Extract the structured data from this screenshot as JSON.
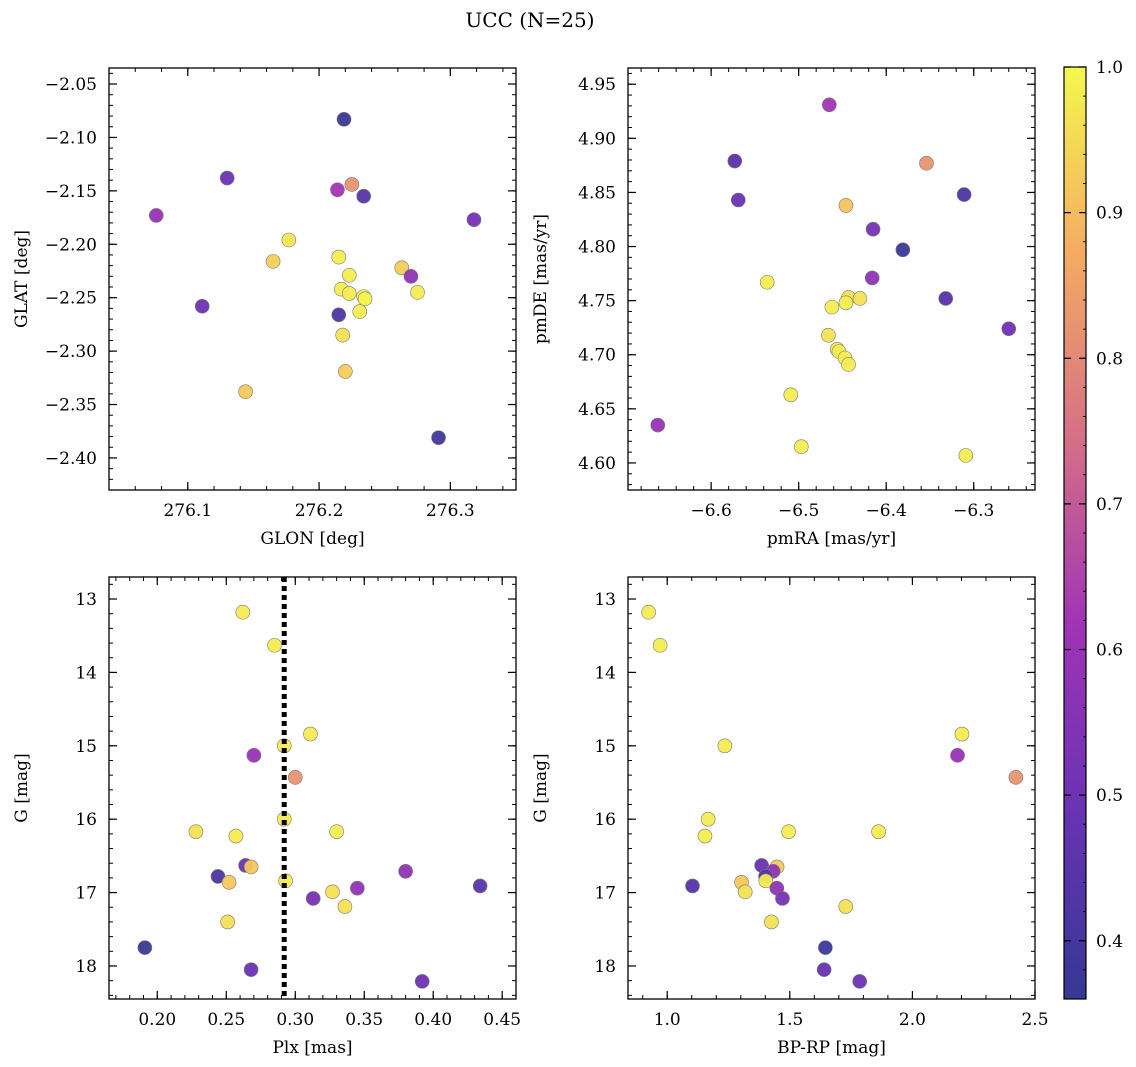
{
  "figure": {
    "title": "UCC (N=25)"
  },
  "colorbar": {
    "range": [
      0.36,
      1.0
    ],
    "ticks": [
      0.4,
      0.5,
      0.6,
      0.7,
      0.8,
      0.9,
      1.0
    ],
    "tick_labels": [
      "0.4",
      "0.5",
      "0.6",
      "0.7",
      "0.8",
      "0.9",
      "1.0"
    ],
    "colormap": "plasma"
  },
  "chart_data": [
    {
      "type": "scatter",
      "xlabel": "GLON [deg]",
      "ylabel": "GLAT [deg]",
      "xlim": [
        276.04,
        276.35
      ],
      "ylim": [
        -2.43,
        -2.035
      ],
      "xticks": [
        276.1,
        276.2,
        276.3
      ],
      "xtick_labels": [
        "276.1",
        "276.2",
        "276.3"
      ],
      "yticks": [
        -2.4,
        -2.35,
        -2.3,
        -2.25,
        -2.2,
        -2.15,
        -2.1,
        -2.05
      ],
      "ytick_labels": [
        "−2.40",
        "−2.35",
        "−2.30",
        "−2.25",
        "−2.20",
        "−2.15",
        "−2.10",
        "−2.05"
      ],
      "y_inverted": false,
      "points": [
        {
          "x": 276.219,
          "y": -2.083,
          "c": 0.37
        },
        {
          "x": 276.13,
          "y": -2.138,
          "c": 0.49
        },
        {
          "x": 276.214,
          "y": -2.149,
          "c": 0.62
        },
        {
          "x": 276.225,
          "y": -2.144,
          "c": 0.82
        },
        {
          "x": 276.234,
          "y": -2.155,
          "c": 0.45
        },
        {
          "x": 276.076,
          "y": -2.173,
          "c": 0.6
        },
        {
          "x": 276.318,
          "y": -2.177,
          "c": 0.52
        },
        {
          "x": 276.177,
          "y": -2.196,
          "c": 0.97
        },
        {
          "x": 276.215,
          "y": -2.212,
          "c": 0.98
        },
        {
          "x": 276.165,
          "y": -2.216,
          "c": 0.93
        },
        {
          "x": 276.263,
          "y": -2.222,
          "c": 0.93
        },
        {
          "x": 276.223,
          "y": -2.229,
          "c": 0.98
        },
        {
          "x": 276.27,
          "y": -2.23,
          "c": 0.58
        },
        {
          "x": 276.217,
          "y": -2.242,
          "c": 0.98
        },
        {
          "x": 276.223,
          "y": -2.246,
          "c": 0.98
        },
        {
          "x": 276.275,
          "y": -2.245,
          "c": 0.98
        },
        {
          "x": 276.234,
          "y": -2.249,
          "c": 0.99
        },
        {
          "x": 276.235,
          "y": -2.251,
          "c": 0.99
        },
        {
          "x": 276.111,
          "y": -2.258,
          "c": 0.5
        },
        {
          "x": 276.231,
          "y": -2.263,
          "c": 0.98
        },
        {
          "x": 276.215,
          "y": -2.266,
          "c": 0.42
        },
        {
          "x": 276.218,
          "y": -2.285,
          "c": 0.96
        },
        {
          "x": 276.22,
          "y": -2.319,
          "c": 0.93
        },
        {
          "x": 276.144,
          "y": -2.338,
          "c": 0.92
        },
        {
          "x": 276.291,
          "y": -2.381,
          "c": 0.39
        }
      ]
    },
    {
      "type": "scatter",
      "xlabel": "pmRA [mas/yr]",
      "ylabel": "pmDE [mas/yr]",
      "xlim": [
        -6.695,
        -6.23
      ],
      "ylim": [
        4.575,
        4.965
      ],
      "xticks": [
        -6.6,
        -6.5,
        -6.4,
        -6.3
      ],
      "xtick_labels": [
        "−6.6",
        "−6.5",
        "−6.4",
        "−6.3"
      ],
      "yticks": [
        4.6,
        4.65,
        4.7,
        4.75,
        4.8,
        4.85,
        4.9,
        4.95
      ],
      "ytick_labels": [
        "4.60",
        "4.65",
        "4.70",
        "4.75",
        "4.80",
        "4.85",
        "4.90",
        "4.95"
      ],
      "y_inverted": false,
      "points": [
        {
          "x": -6.465,
          "y": 4.931,
          "c": 0.62
        },
        {
          "x": -6.573,
          "y": 4.879,
          "c": 0.45
        },
        {
          "x": -6.354,
          "y": 4.877,
          "c": 0.82
        },
        {
          "x": -6.569,
          "y": 4.843,
          "c": 0.49
        },
        {
          "x": -6.311,
          "y": 4.848,
          "c": 0.42
        },
        {
          "x": -6.446,
          "y": 4.838,
          "c": 0.91
        },
        {
          "x": -6.415,
          "y": 4.816,
          "c": 0.52
        },
        {
          "x": -6.381,
          "y": 4.797,
          "c": 0.37
        },
        {
          "x": -6.416,
          "y": 4.771,
          "c": 0.58
        },
        {
          "x": -6.536,
          "y": 4.767,
          "c": 0.98
        },
        {
          "x": -6.332,
          "y": 4.752,
          "c": 0.45
        },
        {
          "x": -6.443,
          "y": 4.753,
          "c": 0.96
        },
        {
          "x": -6.43,
          "y": 4.752,
          "c": 0.96
        },
        {
          "x": -6.446,
          "y": 4.748,
          "c": 0.98
        },
        {
          "x": -6.462,
          "y": 4.744,
          "c": 0.98
        },
        {
          "x": -6.26,
          "y": 4.724,
          "c": 0.5
        },
        {
          "x": -6.466,
          "y": 4.718,
          "c": 0.96
        },
        {
          "x": -6.456,
          "y": 4.705,
          "c": 0.98
        },
        {
          "x": -6.454,
          "y": 4.703,
          "c": 0.98
        },
        {
          "x": -6.447,
          "y": 4.697,
          "c": 0.98
        },
        {
          "x": -6.443,
          "y": 4.691,
          "c": 0.98
        },
        {
          "x": -6.509,
          "y": 4.663,
          "c": 0.98
        },
        {
          "x": -6.661,
          "y": 4.635,
          "c": 0.6
        },
        {
          "x": -6.497,
          "y": 4.615,
          "c": 0.98
        },
        {
          "x": -6.309,
          "y": 4.607,
          "c": 0.98
        }
      ]
    },
    {
      "type": "scatter",
      "xlabel": "Plx [mas]",
      "ylabel": "G [mag]",
      "xlim": [
        0.165,
        0.46
      ],
      "ylim": [
        18.45,
        12.7
      ],
      "xticks": [
        0.2,
        0.25,
        0.3,
        0.35,
        0.4,
        0.45
      ],
      "xtick_labels": [
        "0.20",
        "0.25",
        "0.30",
        "0.35",
        "0.40",
        "0.45"
      ],
      "yticks": [
        13,
        14,
        15,
        16,
        17,
        18
      ],
      "ytick_labels": [
        "13",
        "14",
        "15",
        "16",
        "17",
        "18"
      ],
      "y_inverted": true,
      "vline": {
        "x": 0.292,
        "style": "dotted"
      },
      "points": [
        {
          "x": 0.262,
          "y": 13.18,
          "c": 0.98
        },
        {
          "x": 0.285,
          "y": 13.63,
          "c": 0.98
        },
        {
          "x": 0.292,
          "y": 15.0,
          "c": 0.98
        },
        {
          "x": 0.311,
          "y": 14.84,
          "c": 0.98
        },
        {
          "x": 0.27,
          "y": 15.13,
          "c": 0.6
        },
        {
          "x": 0.3,
          "y": 15.43,
          "c": 0.82
        },
        {
          "x": 0.292,
          "y": 16.0,
          "c": 0.98
        },
        {
          "x": 0.228,
          "y": 16.17,
          "c": 0.96
        },
        {
          "x": 0.257,
          "y": 16.23,
          "c": 0.98
        },
        {
          "x": 0.33,
          "y": 16.17,
          "c": 0.98
        },
        {
          "x": 0.264,
          "y": 16.63,
          "c": 0.49
        },
        {
          "x": 0.268,
          "y": 16.65,
          "c": 0.92
        },
        {
          "x": 0.38,
          "y": 16.71,
          "c": 0.58
        },
        {
          "x": 0.244,
          "y": 16.78,
          "c": 0.42
        },
        {
          "x": 0.252,
          "y": 16.86,
          "c": 0.92
        },
        {
          "x": 0.293,
          "y": 16.84,
          "c": 0.98
        },
        {
          "x": 0.434,
          "y": 16.91,
          "c": 0.45
        },
        {
          "x": 0.345,
          "y": 16.94,
          "c": 0.58
        },
        {
          "x": 0.327,
          "y": 16.99,
          "c": 0.96
        },
        {
          "x": 0.313,
          "y": 17.08,
          "c": 0.52
        },
        {
          "x": 0.336,
          "y": 17.19,
          "c": 0.96
        },
        {
          "x": 0.251,
          "y": 17.4,
          "c": 0.96
        },
        {
          "x": 0.191,
          "y": 17.75,
          "c": 0.37
        },
        {
          "x": 0.268,
          "y": 18.05,
          "c": 0.49
        },
        {
          "x": 0.392,
          "y": 18.21,
          "c": 0.5
        }
      ]
    },
    {
      "type": "scatter",
      "xlabel": "BP-RP [mag]",
      "ylabel": "G [mag]",
      "xlim": [
        0.84,
        2.5
      ],
      "ylim": [
        18.45,
        12.7
      ],
      "xticks": [
        1.0,
        1.5,
        2.0,
        2.5
      ],
      "xtick_labels": [
        "1.0",
        "1.5",
        "2.0",
        "2.5"
      ],
      "yticks": [
        13,
        14,
        15,
        16,
        17,
        18
      ],
      "ytick_labels": [
        "13",
        "14",
        "15",
        "16",
        "17",
        "18"
      ],
      "y_inverted": true,
      "points": [
        {
          "x": 0.924,
          "y": 13.18,
          "c": 0.98
        },
        {
          "x": 0.971,
          "y": 13.63,
          "c": 0.98
        },
        {
          "x": 1.235,
          "y": 15.0,
          "c": 0.98
        },
        {
          "x": 2.202,
          "y": 14.84,
          "c": 0.98
        },
        {
          "x": 2.184,
          "y": 15.13,
          "c": 0.6
        },
        {
          "x": 2.422,
          "y": 15.43,
          "c": 0.82
        },
        {
          "x": 1.167,
          "y": 16.0,
          "c": 0.98
        },
        {
          "x": 1.154,
          "y": 16.23,
          "c": 0.98
        },
        {
          "x": 1.495,
          "y": 16.17,
          "c": 0.98
        },
        {
          "x": 1.862,
          "y": 16.17,
          "c": 0.98
        },
        {
          "x": 1.385,
          "y": 16.63,
          "c": 0.49
        },
        {
          "x": 1.448,
          "y": 16.65,
          "c": 0.92
        },
        {
          "x": 1.432,
          "y": 16.71,
          "c": 0.58
        },
        {
          "x": 1.401,
          "y": 16.78,
          "c": 0.42
        },
        {
          "x": 1.303,
          "y": 16.86,
          "c": 0.92
        },
        {
          "x": 1.402,
          "y": 16.84,
          "c": 0.98
        },
        {
          "x": 1.103,
          "y": 16.91,
          "c": 0.45
        },
        {
          "x": 1.447,
          "y": 16.94,
          "c": 0.58
        },
        {
          "x": 1.318,
          "y": 16.99,
          "c": 0.96
        },
        {
          "x": 1.47,
          "y": 17.08,
          "c": 0.52
        },
        {
          "x": 1.728,
          "y": 17.19,
          "c": 0.96
        },
        {
          "x": 1.425,
          "y": 17.4,
          "c": 0.96
        },
        {
          "x": 1.645,
          "y": 17.75,
          "c": 0.37
        },
        {
          "x": 1.64,
          "y": 18.05,
          "c": 0.49
        },
        {
          "x": 1.785,
          "y": 18.21,
          "c": 0.5
        }
      ]
    }
  ]
}
